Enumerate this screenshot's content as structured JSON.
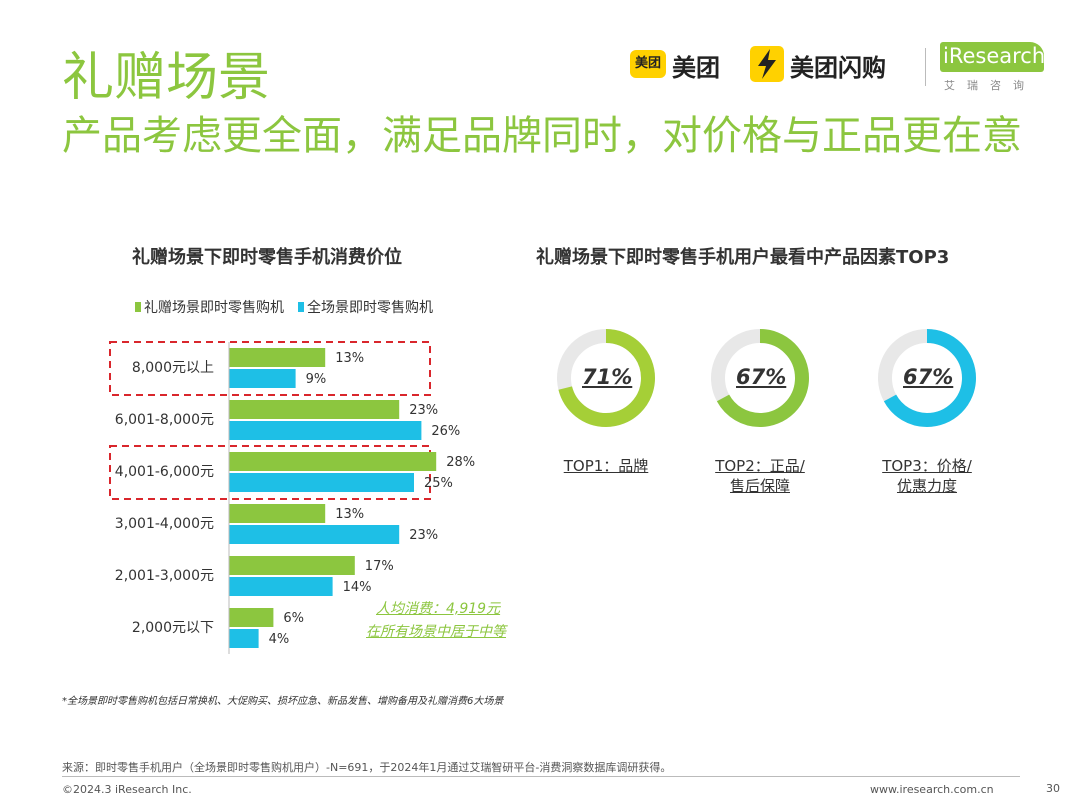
{
  "header": {
    "title": "礼赠场景",
    "subtitle": "产品考虑更全面，满足品牌同时，对价格与正品更在意"
  },
  "logos": {
    "meituan_badge": "美团",
    "meituan": "美团",
    "shangou": "美团闪购",
    "iresearch": "iResearch",
    "iresearch_cn": "艾瑞咨询"
  },
  "colors": {
    "green": "#8cc63f",
    "blue": "#1ebfe6",
    "red_dash": "#d9262c"
  },
  "chart_data": [
    {
      "type": "bar",
      "orientation": "horizontal",
      "title": "礼赠场景下即时零售手机消费价位",
      "categories": [
        "8,000元以上",
        "6,001-8,000元",
        "4,001-6,000元",
        "3,001-4,000元",
        "2,001-3,000元",
        "2,000元以下"
      ],
      "series": [
        {
          "name": "礼赠场景即时零售购机",
          "values": [
            13,
            23,
            28,
            13,
            17,
            6
          ],
          "labels": [
            "13%",
            "23%",
            "28%",
            "13%",
            "17%",
            "6%"
          ],
          "color": "#8cc63f"
        },
        {
          "name": "全场景即时零售购机",
          "values": [
            9,
            26,
            25,
            23,
            14,
            4
          ],
          "labels": [
            "9%",
            "26%",
            "25%",
            "23%",
            "14%",
            "4%"
          ],
          "color": "#1ebfe6"
        }
      ],
      "highlighted": [
        "8,000元以上",
        "4,001-6,000元"
      ],
      "annotation": [
        "人均消费：4,919元",
        "在所有场景中居于中等"
      ],
      "legend": "top-left"
    },
    {
      "type": "pie",
      "subtype": "donut",
      "title": "礼赠场景下即时零售手机用户最看中产品因素TOP3",
      "items": [
        {
          "value": 71,
          "pct_label": "71%",
          "label_lines": [
            "TOP1：品牌"
          ],
          "color": "#a5cf37"
        },
        {
          "value": 67,
          "pct_label": "67%",
          "label_lines": [
            "TOP2：正品/",
            "售后保障"
          ],
          "color": "#8cc63f"
        },
        {
          "value": 67,
          "pct_label": "67%",
          "label_lines": [
            "TOP3：价格/",
            "优惠力度"
          ],
          "color": "#1ebfe6"
        }
      ]
    }
  ],
  "footnote": "*全场景即时零售购机包括日常换机、大促购买、损坏应急、新品发售、增购备用及礼赠消费6大场景",
  "source": "来源：即时零售手机用户（全场景即时零售购机用户）-N=691，于2024年1月通过艾瑞智研平台-消费洞察数据库调研获得。",
  "copyright": "©2024.3 iResearch Inc.",
  "website": "www.iresearch.com.cn",
  "page_number": "30"
}
